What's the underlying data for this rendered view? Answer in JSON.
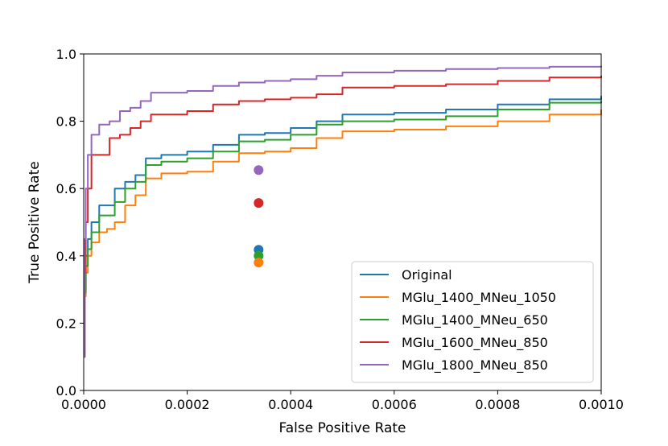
{
  "chart_data": {
    "type": "line",
    "title": "",
    "xlabel": "False Positive Rate",
    "ylabel": "True Positive Rate",
    "xlim": [
      0.0,
      0.001
    ],
    "ylim": [
      0.0,
      1.0
    ],
    "grid": false,
    "legend_position": "lower-right",
    "x_ticks": [
      {
        "value": 0.0,
        "label": "0.0000"
      },
      {
        "value": 0.0002,
        "label": "0.0002"
      },
      {
        "value": 0.0004,
        "label": "0.0004"
      },
      {
        "value": 0.0006,
        "label": "0.0006"
      },
      {
        "value": 0.0008,
        "label": "0.0008"
      },
      {
        "value": 0.001,
        "label": "0.0010"
      }
    ],
    "y_ticks": [
      {
        "value": 0.0,
        "label": "0.0"
      },
      {
        "value": 0.2,
        "label": "0.2"
      },
      {
        "value": 0.4,
        "label": "0.4"
      },
      {
        "value": 0.6,
        "label": "0.6"
      },
      {
        "value": 0.8,
        "label": "0.8"
      },
      {
        "value": 1.0,
        "label": "1.0"
      }
    ],
    "series": [
      {
        "name": "Original",
        "color": "#1f77b4",
        "x": [
          0,
          2e-06,
          4e-06,
          8e-06,
          1.5e-05,
          3e-05,
          4.5e-05,
          6e-05,
          8e-05,
          0.0001,
          0.00012,
          0.00015,
          0.0002,
          0.00025,
          0.0003,
          0.00035,
          0.0004,
          0.00045,
          0.0005,
          0.0006,
          0.0007,
          0.0008,
          0.0009,
          0.001
        ],
        "y": [
          0.1,
          0.3,
          0.4,
          0.45,
          0.5,
          0.55,
          0.55,
          0.6,
          0.62,
          0.64,
          0.69,
          0.7,
          0.71,
          0.73,
          0.76,
          0.765,
          0.78,
          0.8,
          0.82,
          0.825,
          0.835,
          0.85,
          0.865,
          0.875
        ]
      },
      {
        "name": "MGlu_1400_MNeu_1050",
        "color": "#ff7f0e",
        "x": [
          0,
          2e-06,
          4e-06,
          8e-06,
          1.5e-05,
          3e-05,
          4.5e-05,
          6e-05,
          8e-05,
          0.0001,
          0.00012,
          0.00015,
          0.0002,
          0.00025,
          0.0003,
          0.00035,
          0.0004,
          0.00045,
          0.0005,
          0.0006,
          0.0007,
          0.0008,
          0.0009,
          0.001
        ],
        "y": [
          0.1,
          0.28,
          0.35,
          0.4,
          0.44,
          0.47,
          0.48,
          0.5,
          0.55,
          0.58,
          0.63,
          0.645,
          0.65,
          0.68,
          0.705,
          0.71,
          0.72,
          0.75,
          0.77,
          0.775,
          0.785,
          0.8,
          0.82,
          0.835
        ]
      },
      {
        "name": "MGlu_1400_MNeu_650",
        "color": "#2ca02c",
        "x": [
          0,
          2e-06,
          4e-06,
          8e-06,
          1.5e-05,
          3e-05,
          4.5e-05,
          6e-05,
          8e-05,
          0.0001,
          0.00012,
          0.00015,
          0.0002,
          0.00025,
          0.0003,
          0.00035,
          0.0004,
          0.00045,
          0.0005,
          0.0006,
          0.0007,
          0.0008,
          0.0009,
          0.001
        ],
        "y": [
          0.1,
          0.29,
          0.37,
          0.42,
          0.47,
          0.52,
          0.52,
          0.56,
          0.6,
          0.62,
          0.67,
          0.68,
          0.69,
          0.71,
          0.74,
          0.745,
          0.76,
          0.79,
          0.8,
          0.805,
          0.815,
          0.835,
          0.855,
          0.86
        ]
      },
      {
        "name": "MGlu_1600_MNeu_850",
        "color": "#d62728",
        "x": [
          0,
          2e-06,
          4e-06,
          8e-06,
          1.5e-05,
          3e-05,
          5e-05,
          7e-05,
          9e-05,
          0.00011,
          0.00013,
          0.0002,
          0.00025,
          0.0003,
          0.00035,
          0.0004,
          0.00045,
          0.0005,
          0.0006,
          0.0007,
          0.0008,
          0.0009,
          0.001
        ],
        "y": [
          0.1,
          0.35,
          0.5,
          0.6,
          0.7,
          0.7,
          0.75,
          0.76,
          0.78,
          0.8,
          0.82,
          0.83,
          0.85,
          0.86,
          0.865,
          0.87,
          0.88,
          0.9,
          0.905,
          0.91,
          0.92,
          0.93,
          0.935
        ]
      },
      {
        "name": "MGlu_1800_MNeu_850",
        "color": "#9467bd",
        "x": [
          0,
          2e-06,
          4e-06,
          8e-06,
          1.5e-05,
          3e-05,
          5e-05,
          7e-05,
          9e-05,
          0.00011,
          0.00013,
          0.0002,
          0.00025,
          0.0003,
          0.00035,
          0.0004,
          0.00045,
          0.0005,
          0.0006,
          0.0007,
          0.0008,
          0.0009,
          0.001
        ],
        "y": [
          0.1,
          0.45,
          0.6,
          0.7,
          0.76,
          0.79,
          0.8,
          0.83,
          0.84,
          0.86,
          0.885,
          0.89,
          0.905,
          0.915,
          0.92,
          0.925,
          0.935,
          0.945,
          0.95,
          0.955,
          0.958,
          0.962,
          0.965
        ]
      }
    ],
    "points": [
      {
        "series": "MGlu_1800_MNeu_850",
        "x": 0.000338,
        "y": 0.655,
        "color": "#9467bd"
      },
      {
        "series": "MGlu_1600_MNeu_850",
        "x": 0.000338,
        "y": 0.557,
        "color": "#d62728"
      },
      {
        "series": "Original",
        "x": 0.000338,
        "y": 0.418,
        "color": "#1f77b4"
      },
      {
        "series": "MGlu_1400_MNeu_650",
        "x": 0.000338,
        "y": 0.4,
        "color": "#2ca02c"
      },
      {
        "series": "MGlu_1400_MNeu_1050",
        "x": 0.000338,
        "y": 0.38,
        "color": "#ff7f0e"
      }
    ]
  }
}
